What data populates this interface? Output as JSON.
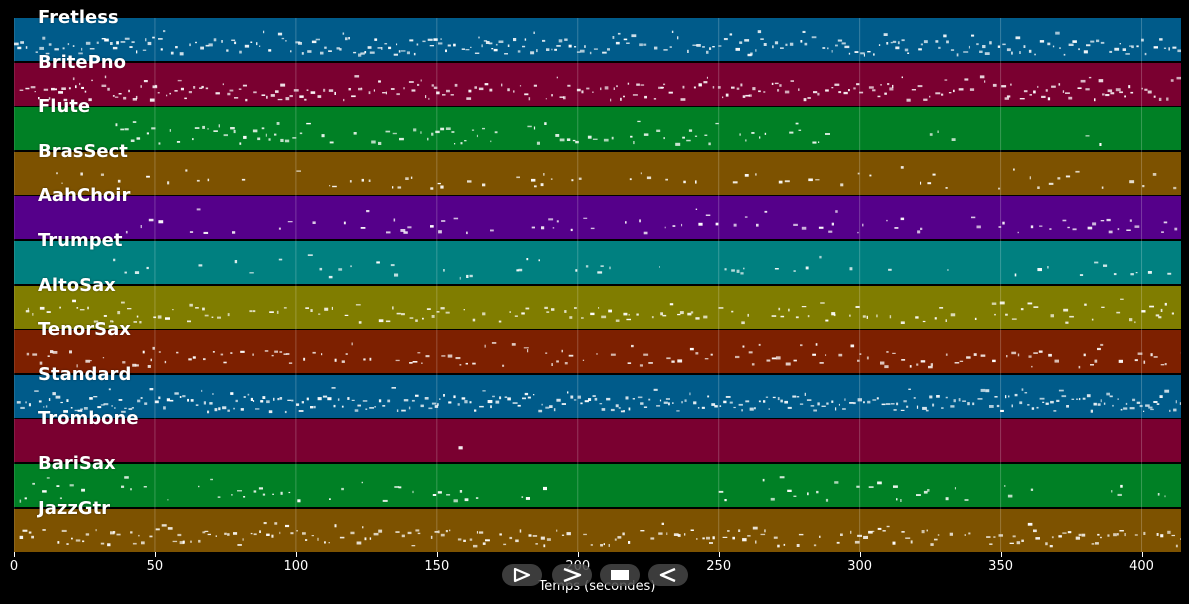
{
  "chart_data": {
    "type": "piano-roll",
    "xlabel": "Temps (secondes)",
    "xlim": [
      0,
      414
    ],
    "xticks": [
      0,
      50,
      100,
      150,
      200,
      250,
      300,
      350,
      400
    ],
    "xtick_labels": [
      "0",
      "50",
      "100",
      "150",
      "200",
      "250",
      "300",
      "350",
      "400"
    ],
    "grid": true,
    "tracks": [
      {
        "name": "Fretless",
        "color": "#005b8a",
        "active": [
          [
            0,
            414
          ]
        ],
        "density": 0.9
      },
      {
        "name": "BritePno",
        "color": "#7a0030",
        "active": [
          [
            2,
            414
          ]
        ],
        "density": 0.85
      },
      {
        "name": "Flute",
        "color": "#008025",
        "active": [
          [
            36,
            292
          ],
          [
            320,
            335
          ],
          [
            375,
            388
          ]
        ],
        "density": 0.6
      },
      {
        "name": "BrasSect",
        "color": "#7d5200",
        "active": [
          [
            15,
            414
          ]
        ],
        "density": 0.35
      },
      {
        "name": "AahChoir",
        "color": "#55008a",
        "active": [
          [
            36,
            414
          ]
        ],
        "density": 0.45
      },
      {
        "name": "Trumpet",
        "color": "#008080",
        "active": [
          [
            15,
            414
          ]
        ],
        "density": 0.35
      },
      {
        "name": "AltoSax",
        "color": "#807d00",
        "active": [
          [
            2,
            414
          ]
        ],
        "density": 0.6
      },
      {
        "name": "TenorSax",
        "color": "#7d2000",
        "active": [
          [
            2,
            414
          ]
        ],
        "density": 0.6
      },
      {
        "name": "Standard",
        "color": "#005b8a",
        "active": [
          [
            1,
            414
          ]
        ],
        "density": 1.0
      },
      {
        "name": "Trombone",
        "color": "#7a0030",
        "active": [
          [
            118,
            414
          ]
        ],
        "density": 0.03
      },
      {
        "name": "BariSax",
        "color": "#008025",
        "active": [
          [
            2,
            190
          ],
          [
            250,
            414
          ]
        ],
        "density": 0.45
      },
      {
        "name": "JazzGtr",
        "color": "#7d5200",
        "active": [
          [
            2,
            414
          ]
        ],
        "density": 0.75
      }
    ]
  },
  "controls": {
    "buttons": [
      {
        "name": "play-button",
        "icon": "play-icon"
      },
      {
        "name": "fast-forward-button",
        "icon": "fast-forward-icon"
      },
      {
        "name": "stop-button",
        "icon": "stop-icon"
      },
      {
        "name": "rewind-button",
        "icon": "rewind-icon"
      }
    ]
  }
}
